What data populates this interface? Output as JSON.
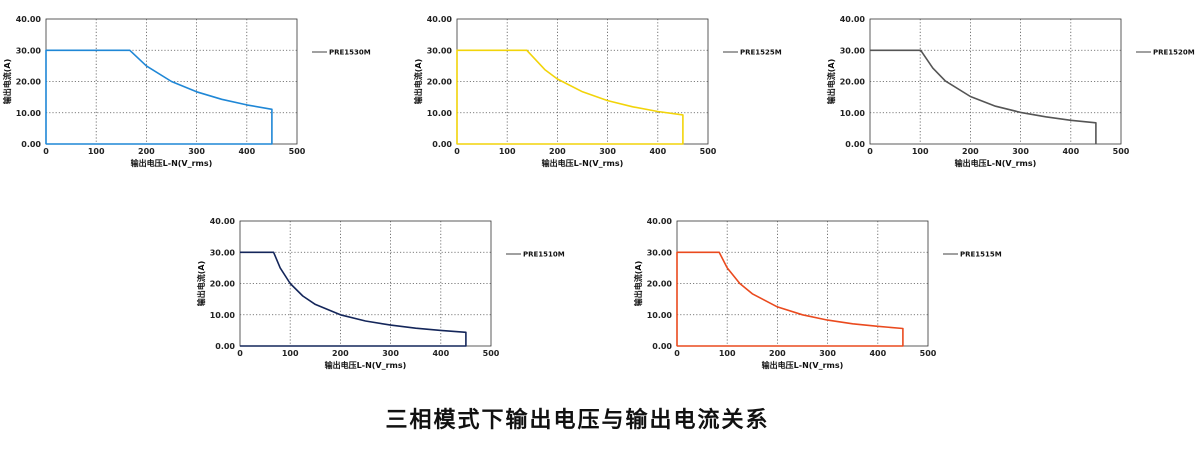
{
  "caption": "三相模式下输出电压与输出电流关系",
  "chart_data": [
    {
      "type": "line",
      "xlabel": "输出电压L-N(V_rms)",
      "ylabel": "输出电流(A)",
      "xlim": [
        0,
        500
      ],
      "ylim": [
        0,
        40
      ],
      "x_ticks": [
        "0",
        "100",
        "200",
        "300",
        "400",
        "500"
      ],
      "y_ticks": [
        "0.00",
        "10.00",
        "20.00",
        "30.00",
        "40.00"
      ],
      "grid": true,
      "legend_position": "right",
      "series": [
        {
          "name": "PRE1530M",
          "color": "#1f87d6",
          "points": [
            [
              0,
              0
            ],
            [
              0,
              30
            ],
            [
              167,
              30
            ],
            [
              200,
              25
            ],
            [
              250,
              20
            ],
            [
              300,
              16.7
            ],
            [
              350,
              14.3
            ],
            [
              400,
              12.5
            ],
            [
              450,
              11.1
            ],
            [
              450,
              0
            ],
            [
              0,
              0
            ]
          ]
        }
      ]
    },
    {
      "type": "line",
      "xlabel": "输出电压L-N(V_rms)",
      "ylabel": "输出电流(A)",
      "xlim": [
        0,
        500
      ],
      "ylim": [
        0,
        40
      ],
      "x_ticks": [
        "0",
        "100",
        "200",
        "300",
        "400",
        "500"
      ],
      "y_ticks": [
        "0.00",
        "10.00",
        "20.00",
        "30.00",
        "40.00"
      ],
      "grid": true,
      "legend_position": "right",
      "series": [
        {
          "name": "PRE1525M",
          "color": "#f2d40a",
          "points": [
            [
              0,
              0
            ],
            [
              0,
              30
            ],
            [
              139,
              30
            ],
            [
              175,
              23.8
            ],
            [
              200,
              20.8
            ],
            [
              250,
              16.7
            ],
            [
              300,
              13.9
            ],
            [
              350,
              11.9
            ],
            [
              400,
              10.4
            ],
            [
              450,
              9.3
            ],
            [
              450,
              0
            ],
            [
              0,
              0
            ]
          ]
        }
      ]
    },
    {
      "type": "line",
      "xlabel": "输出电压L-N(V_rms)",
      "ylabel": "输出电流(A)",
      "xlim": [
        0,
        500
      ],
      "ylim": [
        0,
        40
      ],
      "x_ticks": [
        "0",
        "100",
        "200",
        "300",
        "400",
        "500"
      ],
      "y_ticks": [
        "0.00",
        "10.00",
        "20.00",
        "30.00",
        "40.00"
      ],
      "grid": true,
      "legend_position": "right",
      "series": [
        {
          "name": "PRE1520M",
          "color": "#555555",
          "points": [
            [
              0,
              30
            ],
            [
              101,
              30
            ],
            [
              125,
              24.3
            ],
            [
              150,
              20.2
            ],
            [
              200,
              15.2
            ],
            [
              250,
              12.1
            ],
            [
              300,
              10.1
            ],
            [
              350,
              8.7
            ],
            [
              400,
              7.6
            ],
            [
              450,
              6.8
            ],
            [
              450,
              0
            ]
          ]
        }
      ]
    },
    {
      "type": "line",
      "xlabel": "输出电压L-N(V_rms)",
      "ylabel": "输出电流(A)",
      "xlim": [
        0,
        500
      ],
      "ylim": [
        0,
        40
      ],
      "x_ticks": [
        "0",
        "100",
        "200",
        "300",
        "400",
        "500"
      ],
      "y_ticks": [
        "0.00",
        "10.00",
        "20.00",
        "30.00",
        "40.00"
      ],
      "grid": true,
      "legend_position": "right",
      "series": [
        {
          "name": "PRE1510M",
          "color": "#14265a",
          "points": [
            [
              0,
              30
            ],
            [
              67,
              30
            ],
            [
              80,
              25
            ],
            [
              100,
              20
            ],
            [
              125,
              16
            ],
            [
              150,
              13.3
            ],
            [
              200,
              10
            ],
            [
              250,
              8
            ],
            [
              300,
              6.7
            ],
            [
              350,
              5.7
            ],
            [
              400,
              5
            ],
            [
              450,
              4.4
            ],
            [
              450,
              0
            ],
            [
              0,
              0
            ]
          ]
        }
      ]
    },
    {
      "type": "line",
      "xlabel": "输出电压L-N(V_rms)",
      "ylabel": "输出电流(A)",
      "xlim": [
        0,
        500
      ],
      "ylim": [
        0,
        40
      ],
      "x_ticks": [
        "0",
        "100",
        "200",
        "300",
        "400",
        "500"
      ],
      "y_ticks": [
        "0.00",
        "10.00",
        "20.00",
        "30.00",
        "40.00"
      ],
      "grid": true,
      "legend_position": "right",
      "series": [
        {
          "name": "PRE1515M",
          "color": "#ea4a1e",
          "points": [
            [
              0,
              0
            ],
            [
              0,
              30
            ],
            [
              84,
              30
            ],
            [
              100,
              25
            ],
            [
              125,
              20
            ],
            [
              150,
              16.7
            ],
            [
              200,
              12.5
            ],
            [
              250,
              10
            ],
            [
              300,
              8.3
            ],
            [
              350,
              7.1
            ],
            [
              400,
              6.3
            ],
            [
              450,
              5.6
            ],
            [
              450,
              0
            ],
            [
              0,
              0
            ]
          ]
        }
      ]
    }
  ]
}
